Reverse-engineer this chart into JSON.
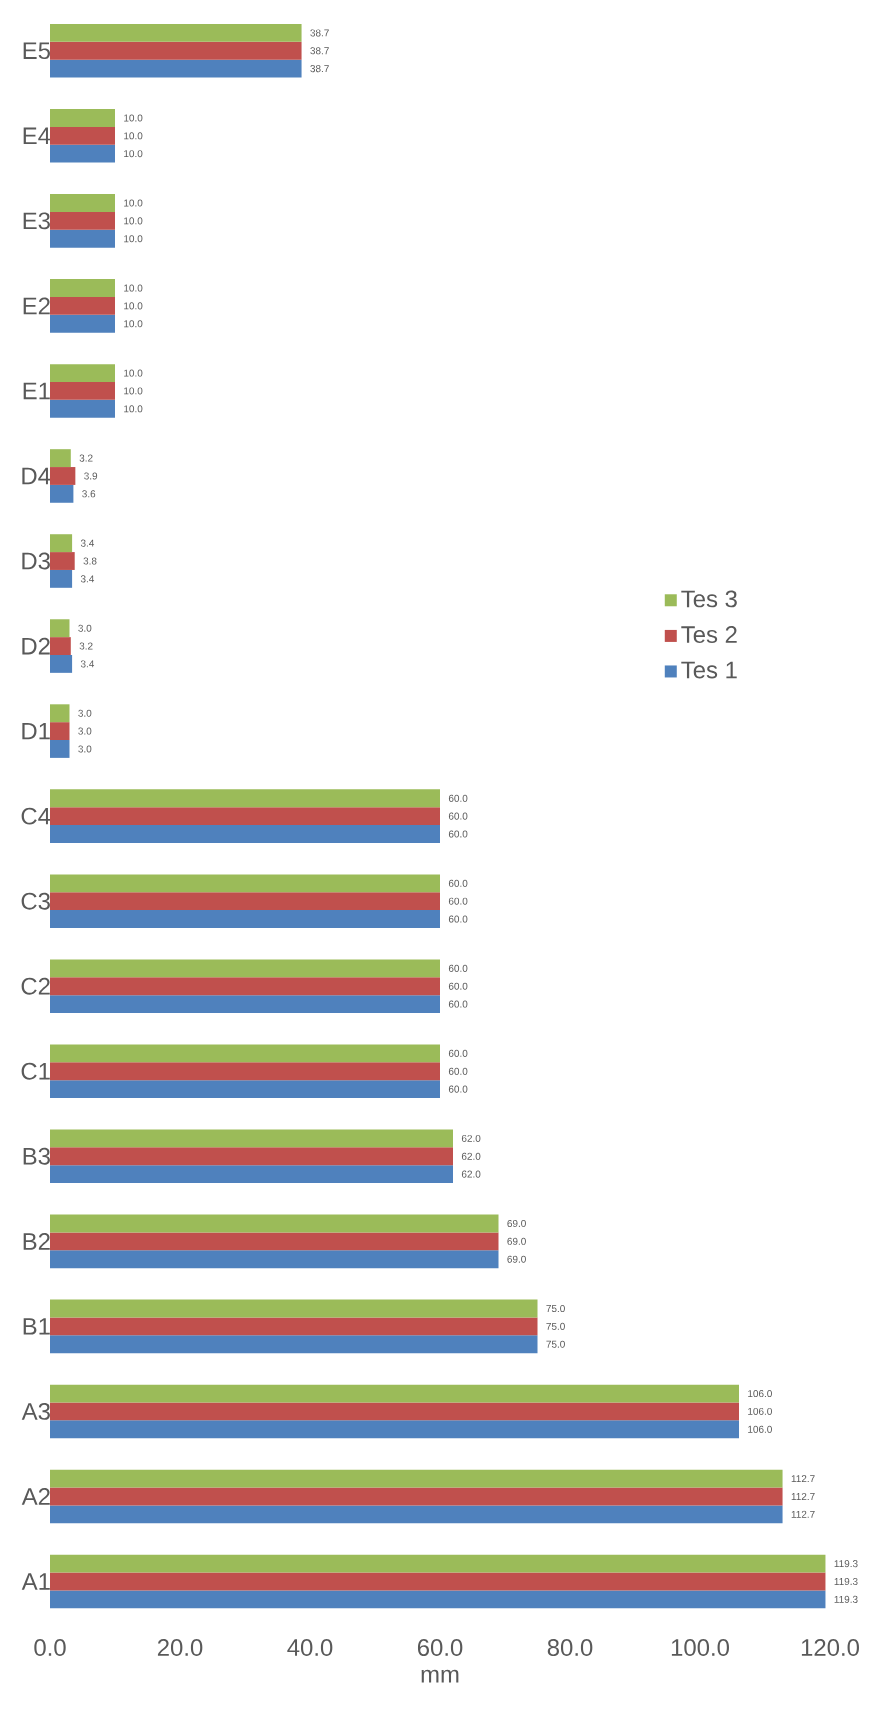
{
  "chart_data": {
    "type": "bar",
    "orientation": "horizontal",
    "xlabel": "mm",
    "categories": [
      "E5",
      "E4",
      "E3",
      "E2",
      "E1",
      "D4",
      "D3",
      "D2",
      "D1",
      "C4",
      "C3",
      "C2",
      "C1",
      "B3",
      "B2",
      "B1",
      "A3",
      "A2",
      "A1"
    ],
    "series": [
      {
        "name": "Tes 1",
        "color": "#4f81bd",
        "values": [
          38.7,
          10.0,
          10.0,
          10.0,
          10.0,
          3.6,
          3.4,
          3.4,
          3.0,
          60.0,
          60.0,
          60.0,
          60.0,
          62.0,
          69.0,
          75.0,
          106.0,
          112.7,
          119.3
        ],
        "value_labels": [
          "38.7",
          "10.0",
          "10.0",
          "10.0",
          "10.0",
          "3.6",
          "3.4",
          "3.4",
          "3.0",
          "60.0",
          "60.0",
          "60.0",
          "60.0",
          "62.0",
          "69.0",
          "75.0",
          "106.0",
          "112.7",
          "119.3"
        ]
      },
      {
        "name": "Tes 2",
        "color": "#c0504d",
        "values": [
          38.7,
          10.0,
          10.0,
          10.0,
          10.0,
          3.9,
          3.8,
          3.2,
          3.0,
          60.0,
          60.0,
          60.0,
          60.0,
          62.0,
          69.0,
          75.0,
          106.0,
          112.7,
          119.3
        ],
        "value_labels": [
          "38.7",
          "10.0",
          "10.0",
          "10.0",
          "10.0",
          "3.9",
          "3.8",
          "3.2",
          "3.0",
          "60.0",
          "60.0",
          "60.0",
          "60.0",
          "62.0",
          "69.0",
          "75.0",
          "106.0",
          "112.7",
          "119.3"
        ]
      },
      {
        "name": "Tes 3",
        "color": "#9bbb59",
        "values": [
          38.7,
          10.0,
          10.0,
          10.0,
          10.0,
          3.2,
          3.4,
          3.0,
          3.0,
          60.0,
          60.0,
          60.0,
          60.0,
          62.0,
          69.0,
          75.0,
          106.0,
          112.7,
          119.3
        ],
        "value_labels": [
          "38.7",
          "10.0",
          "10.0",
          "10.0",
          "10.0",
          "3.2",
          "3.4",
          "3.0",
          "3.0",
          "60.0",
          "60.0",
          "60.0",
          "60.0",
          "62.0",
          "69.0",
          "75.0",
          "106.0",
          "112.7",
          "119.3"
        ]
      }
    ],
    "xlim": [
      0,
      120
    ],
    "xticks": [
      {
        "value": 0,
        "label": "0.0"
      },
      {
        "value": 20,
        "label": "20.0"
      },
      {
        "value": 40,
        "label": "40.0"
      },
      {
        "value": 60,
        "label": "60.0"
      },
      {
        "value": 80,
        "label": "80.0"
      },
      {
        "value": 100,
        "label": "100.0"
      },
      {
        "value": 120,
        "label": "120.0"
      }
    ],
    "legend": "right"
  }
}
